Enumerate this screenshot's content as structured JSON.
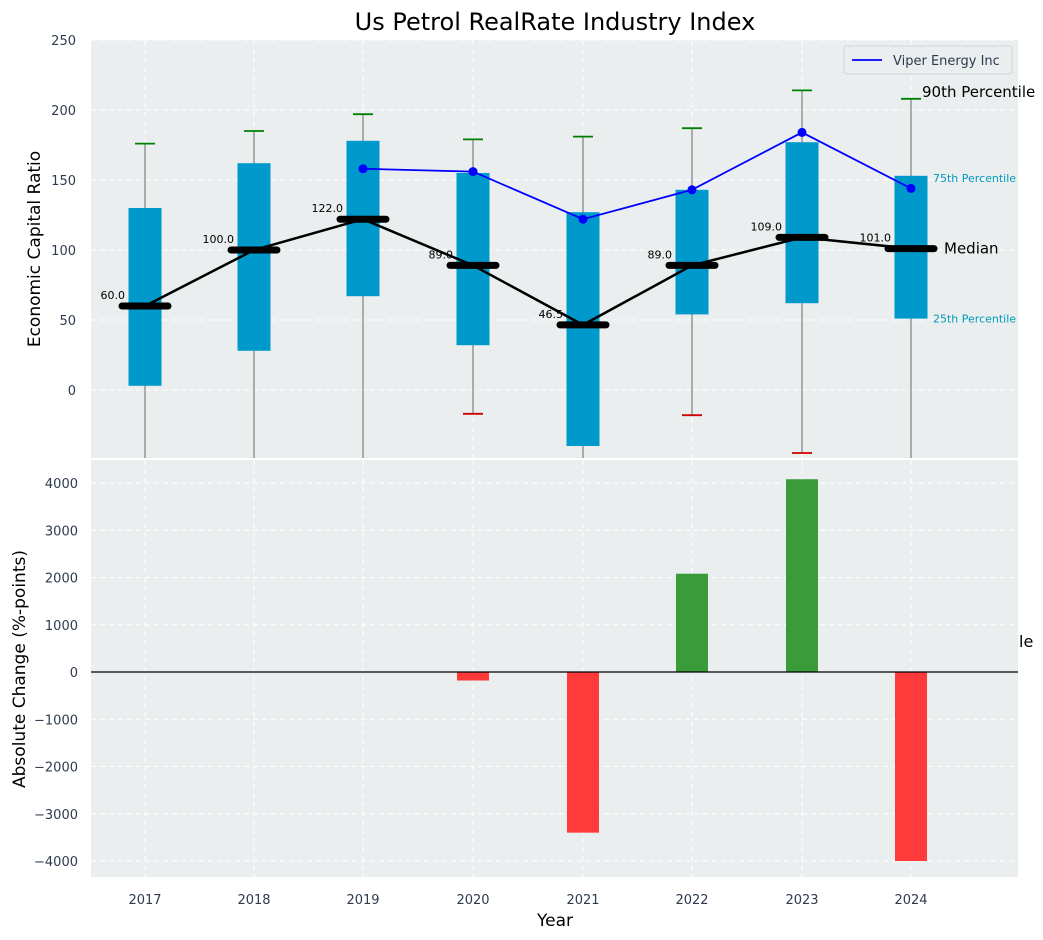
{
  "chart_data": [
    {
      "type": "box",
      "title": "Us Petrol RealRate Industry Index",
      "ylabel": "Economic Capital Ratio",
      "ylim": [
        -48,
        250
      ],
      "yticks": [
        0,
        50,
        100,
        150,
        200,
        250
      ],
      "categories": [
        "2017",
        "2018",
        "2019",
        "2020",
        "2021",
        "2022",
        "2023",
        "2024"
      ],
      "p25": [
        3,
        28,
        67,
        32,
        -40,
        54,
        62,
        51
      ],
      "p75": [
        130,
        162,
        178,
        155,
        127,
        143,
        177,
        153
      ],
      "median": [
        60,
        100,
        122,
        89,
        46.5,
        89,
        109,
        101
      ],
      "median_labels": [
        "60.0",
        "100.0",
        "122.0",
        "89.0",
        "46.5",
        "89.0",
        "109.0",
        "101.0"
      ],
      "p90": [
        176,
        185,
        197,
        179,
        181,
        187,
        214,
        208
      ],
      "p10": [
        null,
        null,
        null,
        -17,
        null,
        -18,
        -45,
        null
      ],
      "series": [
        {
          "name": "Viper Energy Inc",
          "x": [
            "2019",
            "2020",
            "2021",
            "2022",
            "2023",
            "2024"
          ],
          "values": [
            158,
            156,
            122,
            143,
            184,
            144
          ],
          "color": "#0000ff"
        }
      ],
      "legend_position": "top-right",
      "annotations": {
        "p90": "90th Percentile",
        "p75": "75th Percentile",
        "median": "Median",
        "p25": "25th Percentile"
      },
      "colors": {
        "box": "#0099cc",
        "median": "#000000",
        "whisker": "#808080",
        "cap_high": "#008000",
        "cap_low": "#cc0000",
        "background": "#eaeeef"
      },
      "grid": true
    },
    {
      "type": "bar",
      "xlabel": "Year",
      "ylabel": "Absolute Change (%-points)",
      "ylim": [
        -4350,
        4500
      ],
      "yticks": [
        -4000,
        -3000,
        -2000,
        -1000,
        0,
        1000,
        2000,
        3000,
        4000
      ],
      "ytick_labels": [
        "−4000",
        "−3000",
        "−2000",
        "−1000",
        "0",
        "1000",
        "2000",
        "3000",
        "4000"
      ],
      "categories": [
        "2017",
        "2018",
        "2019",
        "2020",
        "2021",
        "2022",
        "2023",
        "2024"
      ],
      "values": [
        0,
        0,
        0,
        -180,
        -3400,
        2080,
        4080,
        -4000
      ],
      "colors": {
        "positive": "#3a9b3a",
        "negative": "#ff3a3a"
      },
      "clipped_text": "le",
      "grid": true
    }
  ]
}
